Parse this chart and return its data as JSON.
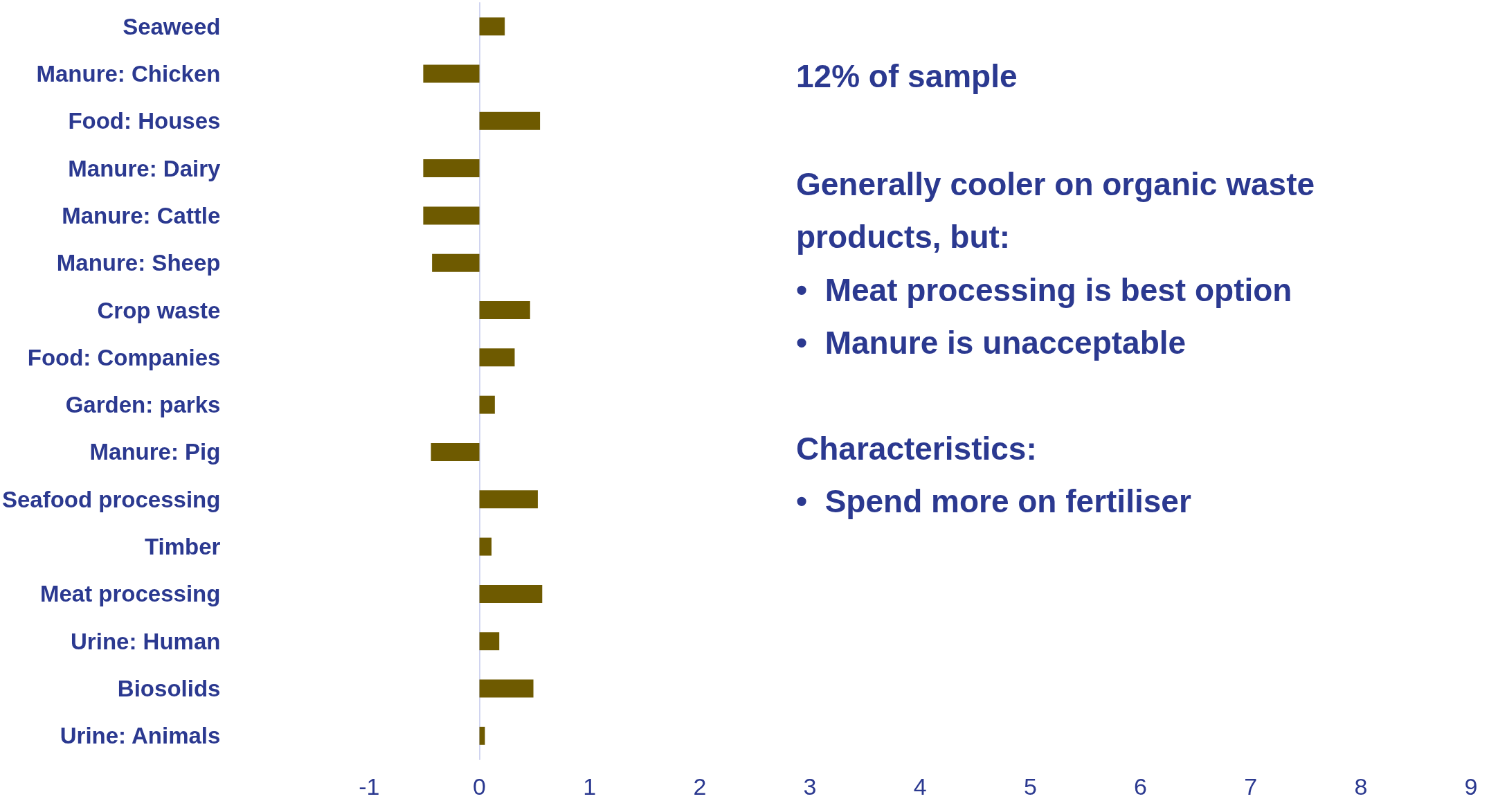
{
  "chart_data": {
    "type": "bar",
    "orientation": "horizontal",
    "categories": [
      "Seaweed",
      "Manure: Chicken",
      "Food: Houses",
      "Manure: Dairy",
      "Manure: Cattle",
      "Manure: Sheep",
      "Crop waste",
      "Food: Companies",
      "Garden: parks",
      "Manure: Pig",
      "Seafood processing",
      "Timber",
      "Meat processing",
      "Urine: Human",
      "Biosolids",
      "Urine: Animals"
    ],
    "values": [
      0.23,
      -0.51,
      0.55,
      -0.51,
      -0.51,
      -0.43,
      0.46,
      0.32,
      0.14,
      -0.44,
      0.53,
      0.11,
      0.57,
      0.18,
      0.49,
      0.05
    ],
    "color": "#6e5a00",
    "xlim": [
      -1,
      9
    ],
    "xticks": [
      -1,
      0,
      1,
      2,
      3,
      4,
      5,
      6,
      7,
      8,
      9
    ],
    "annotations": [
      "12% of sample",
      "Generally cooler on organic waste products, but:",
      "•  Meat processing is best option",
      "•  Manure is unacceptable",
      "Characteristics:",
      "•  Spend more on fertiliser"
    ]
  }
}
